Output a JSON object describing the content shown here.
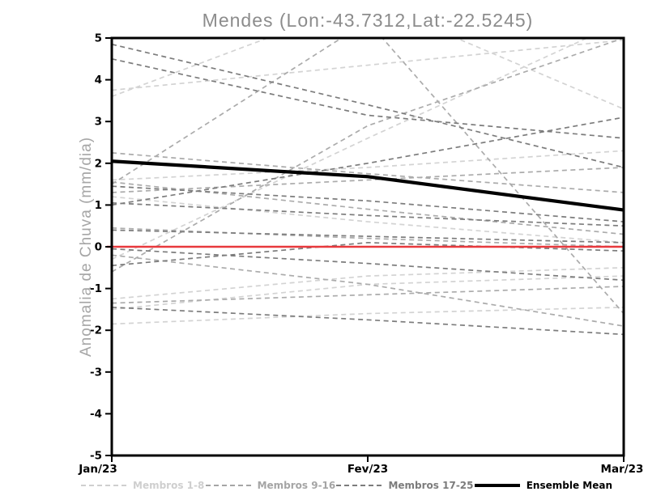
{
  "page": {
    "background": "#ffffff"
  },
  "chart_data": {
    "type": "line",
    "title": "Mendes (Lon:-43.7312,Lat:-22.5245)",
    "ylabel": "Anomalia de Chuva (mm/dia)",
    "xlabel": "",
    "x_categories": [
      "Jan/23",
      "Fev/23",
      "Mar/23"
    ],
    "ylim": [
      -5,
      5
    ],
    "y_tick_step": 1,
    "grid": false,
    "legend_position": "bottom",
    "axis_color": "#000000",
    "tick_label_color": "#000000",
    "title_color": "#8c8c8c",
    "zero_line": {
      "value": 0,
      "color": "#e8393d"
    },
    "groups": [
      {
        "name": "Membros 1-8",
        "color": "#d3d3d3",
        "line_style": "dashed",
        "members": [
          [
            3.75,
            4.35,
            4.95
          ],
          [
            3.6,
            5.9,
            3.3
          ],
          [
            1.6,
            1.9,
            2.3
          ],
          [
            1.2,
            0.6,
            0.1
          ],
          [
            -0.3,
            2.6,
            5.4
          ],
          [
            -1.25,
            -0.7,
            -0.5
          ],
          [
            -1.5,
            -0.9,
            -0.7
          ],
          [
            -1.85,
            -1.6,
            -1.45
          ]
        ]
      },
      {
        "name": "Membros 9-16",
        "color": "#ababab",
        "line_style": "dashed",
        "members": [
          [
            2.25,
            1.75,
            1.3
          ],
          [
            1.5,
            5.4,
            -1.6
          ],
          [
            1.55,
            0.9,
            0.3
          ],
          [
            1.3,
            1.6,
            1.9
          ],
          [
            0.45,
            0.2,
            0.0
          ],
          [
            -0.2,
            -0.9,
            -1.9
          ],
          [
            -1.35,
            -1.15,
            -0.95
          ],
          [
            -0.6,
            2.9,
            5.0
          ]
        ]
      },
      {
        "name": "Membros 17-25",
        "color": "#7c7c7c",
        "line_style": "dashed",
        "members": [
          [
            4.85,
            3.4,
            1.9
          ],
          [
            4.5,
            3.15,
            2.6
          ],
          [
            1.0,
            2.0,
            3.1
          ],
          [
            1.45,
            1.1,
            0.6
          ],
          [
            1.05,
            0.75,
            0.5
          ],
          [
            0.4,
            0.25,
            0.1
          ],
          [
            -0.05,
            -0.4,
            -0.8
          ],
          [
            -0.45,
            0.1,
            -0.1
          ],
          [
            -1.45,
            -1.75,
            -2.1
          ]
        ]
      }
    ],
    "ensemble_mean": {
      "label": "Ensemble Mean",
      "color": "#000000",
      "line_style": "solid",
      "values": [
        2.05,
        1.68,
        0.88
      ]
    },
    "legend": [
      {
        "label": "Membros 1-8",
        "color": "#cfcfcf",
        "style": "dashed"
      },
      {
        "label": "Membros 9-16",
        "color": "#a5a5a5",
        "style": "dashed"
      },
      {
        "label": "Membros 17-25",
        "color": "#7c7c7c",
        "style": "dashed"
      },
      {
        "label": "Ensemble Mean",
        "color": "#000000",
        "style": "solid"
      }
    ]
  }
}
